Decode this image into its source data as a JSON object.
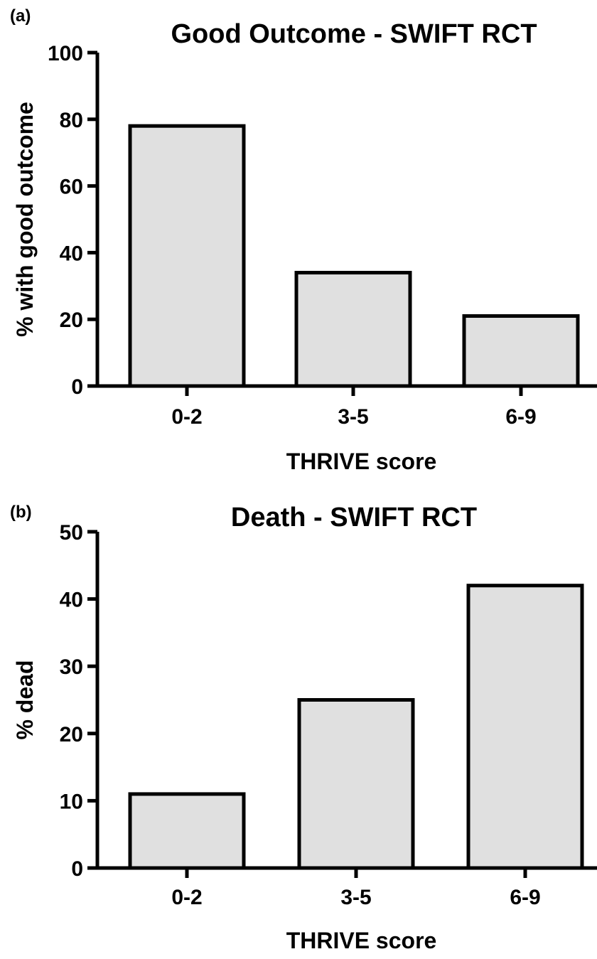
{
  "chart_data": [
    {
      "type": "bar",
      "panel": "(a)",
      "title": "Good Outcome - SWIFT RCT",
      "xlabel": "THRIVE score",
      "ylabel": "% with good outcome",
      "categories": [
        "0-2",
        "3-5",
        "6-9"
      ],
      "values": [
        78,
        34,
        21
      ],
      "ylim": [
        0,
        100
      ],
      "yticks": [
        0,
        20,
        40,
        60,
        80,
        100
      ],
      "grid": false,
      "bar_color": "#e0e0e0"
    },
    {
      "type": "bar",
      "panel": "(b)",
      "title": "Death - SWIFT RCT",
      "xlabel": "THRIVE score",
      "ylabel": "% dead",
      "categories": [
        "0-2",
        "3-5",
        "6-9"
      ],
      "values": [
        11,
        25,
        42
      ],
      "ylim": [
        0,
        50
      ],
      "yticks": [
        0,
        10,
        20,
        30,
        40,
        50
      ],
      "grid": false,
      "bar_color": "#e0e0e0"
    }
  ]
}
